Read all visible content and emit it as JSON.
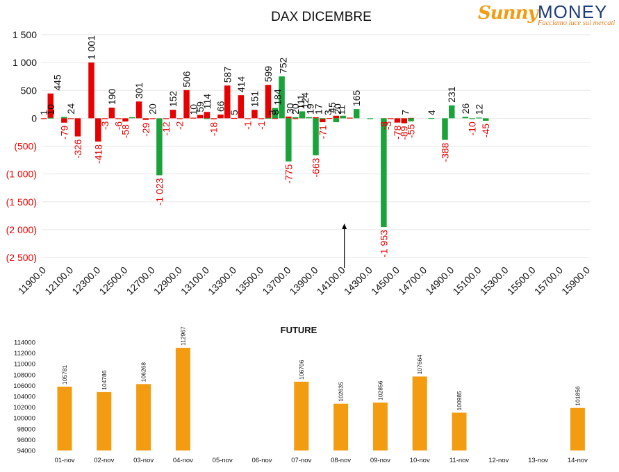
{
  "logo": {
    "brand_left": "Sunny",
    "brand_right": "MONEY",
    "tagline": "Facciamo luce sui mercati"
  },
  "colors": {
    "positive": "#e60000",
    "negative": "#1aa33a",
    "label_pos": "#111111",
    "label_neg": "#e60000",
    "future": "#f39c12",
    "grid": "#e6e6e6"
  },
  "chart_data": [
    {
      "type": "bar",
      "title": "DAX DICEMBRE",
      "ylim": [
        -2500,
        1500
      ],
      "yticks": [
        1500,
        1000,
        500,
        0,
        -500,
        -1000,
        -1500,
        -2000,
        -2500
      ],
      "ytick_labels": [
        "1 500",
        "1 000",
        "500",
        "0",
        "(500)",
        "(1 000)",
        "(1 500)",
        "(2 000)",
        "(2 500)"
      ],
      "x_start": 11900,
      "x_step": 50,
      "x_tick_labels": [
        "11900.0",
        "12100.0",
        "12300.0",
        "12500.0",
        "12700.0",
        "12900.0",
        "13100.0",
        "13300.0",
        "13500.0",
        "13700.0",
        "13900.0",
        "14100.0",
        "14300.0",
        "14500.0",
        "14700.0",
        "14900.0",
        "15100.0",
        "15300.0",
        "15500.0",
        "15700.0",
        "15900.0"
      ],
      "grid": true,
      "annotation": {
        "type": "arrow",
        "x": 14100
      },
      "series": [
        {
          "color": "red",
          "values": [
            [
              11900,
              1
            ],
            [
              11950,
              445
            ],
            [
              12050,
              -79
            ],
            [
              12100,
              0
            ],
            [
              12150,
              -326
            ],
            [
              12250,
              1001
            ],
            [
              12300,
              -418
            ],
            [
              12350,
              -3
            ],
            [
              12400,
              190
            ],
            [
              12450,
              -6
            ],
            [
              12500,
              -58
            ],
            [
              12600,
              301
            ],
            [
              12650,
              -29
            ],
            [
              12700,
              0
            ],
            [
              12800,
              -12
            ],
            [
              12850,
              152
            ],
            [
              12900,
              -2
            ],
            [
              12950,
              506
            ],
            [
              13000,
              10
            ],
            [
              13050,
              59
            ],
            [
              13100,
              114
            ],
            [
              13150,
              -18
            ],
            [
              13200,
              66
            ],
            [
              13250,
              587
            ],
            [
              13300,
              5
            ],
            [
              13350,
              414
            ],
            [
              13400,
              -1
            ],
            [
              13450,
              151
            ],
            [
              13500,
              -1
            ],
            [
              13550,
              599
            ],
            [
              13600,
              3
            ],
            [
              13700,
              30
            ],
            [
              13750,
              0
            ],
            [
              13800,
              111
            ],
            [
              13900,
              17
            ],
            [
              13950,
              -71
            ],
            [
              14000,
              3
            ],
            [
              14050,
              45
            ],
            [
              14100,
              20
            ],
            [
              14150,
              11
            ],
            [
              14400,
              -8
            ],
            [
              14450,
              -3
            ],
            [
              14500,
              -78
            ],
            [
              14550,
              -89
            ],
            [
              14600,
              7
            ]
          ]
        },
        {
          "color": "green",
          "values": [
            [
              11950,
              10
            ],
            [
              12050,
              24
            ],
            [
              12550,
              20
            ],
            [
              12750,
              -1023
            ],
            [
              13100,
              0
            ],
            [
              13550,
              8
            ],
            [
              13600,
              184
            ],
            [
              13650,
              752
            ],
            [
              13700,
              -775
            ],
            [
              13750,
              20
            ],
            [
              13800,
              124
            ],
            [
              13850,
              19
            ],
            [
              13900,
              -663
            ],
            [
              13950,
              0
            ],
            [
              14050,
              -71
            ],
            [
              14100,
              45
            ],
            [
              14200,
              165
            ],
            [
              14300,
              0
            ],
            [
              14400,
              -1953
            ],
            [
              14600,
              -55
            ],
            [
              14750,
              4
            ],
            [
              14850,
              -388
            ],
            [
              14900,
              231
            ],
            [
              15000,
              26
            ],
            [
              15050,
              -10
            ],
            [
              15100,
              12
            ],
            [
              15150,
              -45
            ]
          ]
        }
      ],
      "labels": [
        {
          "x": 11900,
          "v": "1",
          "side": "pos"
        },
        {
          "x": 11950,
          "v": "10",
          "side": "pos"
        },
        {
          "x": 12000,
          "v": "445",
          "side": "pos"
        },
        {
          "x": 12050,
          "v": "-79",
          "side": "neg"
        },
        {
          "x": 12100,
          "v": "24",
          "side": "pos"
        },
        {
          "x": 12150,
          "v": "-326",
          "side": "neg"
        },
        {
          "x": 12250,
          "v": "1 001",
          "side": "pos"
        },
        {
          "x": 12300,
          "v": "-418",
          "side": "neg"
        },
        {
          "x": 12350,
          "v": "-3",
          "side": "neg"
        },
        {
          "x": 12400,
          "v": "190",
          "side": "pos"
        },
        {
          "x": 12450,
          "v": "-6",
          "side": "neg"
        },
        {
          "x": 12500,
          "v": "-58",
          "side": "neg"
        },
        {
          "x": 12600,
          "v": "301",
          "side": "pos"
        },
        {
          "x": 12650,
          "v": "-29",
          "side": "neg"
        },
        {
          "x": 12700,
          "v": "20",
          "side": "pos"
        },
        {
          "x": 12800,
          "v": "-12",
          "side": "neg"
        },
        {
          "x": 12850,
          "v": "152",
          "side": "pos"
        },
        {
          "x": 12750,
          "v": "-1 023",
          "side": "neg"
        },
        {
          "x": 12900,
          "v": "-2",
          "side": "neg"
        },
        {
          "x": 12950,
          "v": "506",
          "side": "pos"
        },
        {
          "x": 13000,
          "v": "10",
          "side": "pos"
        },
        {
          "x": 13050,
          "v": "59",
          "side": "pos"
        },
        {
          "x": 13100,
          "v": "114",
          "side": "pos"
        },
        {
          "x": 13150,
          "v": "-18",
          "side": "neg"
        },
        {
          "x": 13200,
          "v": "66",
          "side": "pos"
        },
        {
          "x": 13250,
          "v": "587",
          "side": "pos"
        },
        {
          "x": 13300,
          "v": "5",
          "side": "pos"
        },
        {
          "x": 13350,
          "v": "414",
          "side": "pos"
        },
        {
          "x": 13400,
          "v": "-1",
          "side": "neg"
        },
        {
          "x": 13450,
          "v": "151",
          "side": "pos"
        },
        {
          "x": 13500,
          "v": "-1",
          "side": "neg"
        },
        {
          "x": 13550,
          "v": "599",
          "side": "pos"
        },
        {
          "x": 13580,
          "v": "3",
          "side": "pos"
        },
        {
          "x": 13600,
          "v": "8",
          "side": "pos"
        },
        {
          "x": 13620,
          "v": "184",
          "side": "pos"
        },
        {
          "x": 13660,
          "v": "752",
          "side": "pos"
        },
        {
          "x": 13700,
          "v": "-775",
          "side": "neg"
        },
        {
          "x": 13710,
          "v": "30",
          "side": "pos"
        },
        {
          "x": 13750,
          "v": "20",
          "side": "pos"
        },
        {
          "x": 13790,
          "v": "111",
          "side": "pos"
        },
        {
          "x": 13820,
          "v": "124",
          "side": "pos"
        },
        {
          "x": 13860,
          "v": "19",
          "side": "pos"
        },
        {
          "x": 13900,
          "v": "-663",
          "side": "neg"
        },
        {
          "x": 13920,
          "v": "17",
          "side": "pos"
        },
        {
          "x": 13950,
          "v": "-71",
          "side": "neg"
        },
        {
          "x": 13990,
          "v": "3",
          "side": "pos"
        },
        {
          "x": 14020,
          "v": "45",
          "side": "pos"
        },
        {
          "x": 14060,
          "v": "20",
          "side": "pos"
        },
        {
          "x": 14090,
          "v": "11",
          "side": "pos"
        },
        {
          "x": 14200,
          "v": "165",
          "side": "pos"
        },
        {
          "x": 14400,
          "v": "-8",
          "side": "neg"
        },
        {
          "x": 14430,
          "v": "-3",
          "side": "neg"
        },
        {
          "x": 14400,
          "v": "-1 953",
          "side": "neg"
        },
        {
          "x": 14500,
          "v": "-78",
          "side": "neg"
        },
        {
          "x": 14560,
          "v": "7",
          "side": "pos"
        },
        {
          "x": 14550,
          "v": "-89",
          "side": "neg"
        },
        {
          "x": 14600,
          "v": "-55",
          "side": "neg"
        },
        {
          "x": 14750,
          "v": "4",
          "side": "pos"
        },
        {
          "x": 14850,
          "v": "-388",
          "side": "neg"
        },
        {
          "x": 14900,
          "v": "231",
          "side": "pos"
        },
        {
          "x": 15000,
          "v": "26",
          "side": "pos"
        },
        {
          "x": 15050,
          "v": "-10",
          "side": "neg"
        },
        {
          "x": 15100,
          "v": "12",
          "side": "pos"
        },
        {
          "x": 15150,
          "v": "-45",
          "side": "neg"
        }
      ]
    },
    {
      "type": "bar",
      "title": "FUTURE",
      "ylim": [
        94000,
        114000
      ],
      "yticks": [
        94000,
        96000,
        98000,
        100000,
        102000,
        104000,
        106000,
        108000,
        110000,
        112000,
        114000
      ],
      "ytick_labels": [
        "94000",
        "96000",
        "98000",
        "100000",
        "102000",
        "104000",
        "106000",
        "108000",
        "110000",
        "112000",
        "114000"
      ],
      "categories": [
        "01-nov",
        "02-nov",
        "03-nov",
        "04-nov",
        "05-nov",
        "06-nov",
        "07-nov",
        "08-nov",
        "09-nov",
        "10-nov",
        "11-nov",
        "12-nov",
        "13-nov",
        "14-nov"
      ],
      "values": [
        105781,
        104786,
        106268,
        112967,
        null,
        null,
        106706,
        102635,
        102856,
        107664,
        100985,
        null,
        null,
        101856
      ],
      "value_labels": [
        "105781",
        "104786",
        "106268",
        "112967",
        "",
        "",
        "106706",
        "102635",
        "102856",
        "107664",
        "100985",
        "",
        "",
        "101856"
      ],
      "grid": false
    }
  ]
}
